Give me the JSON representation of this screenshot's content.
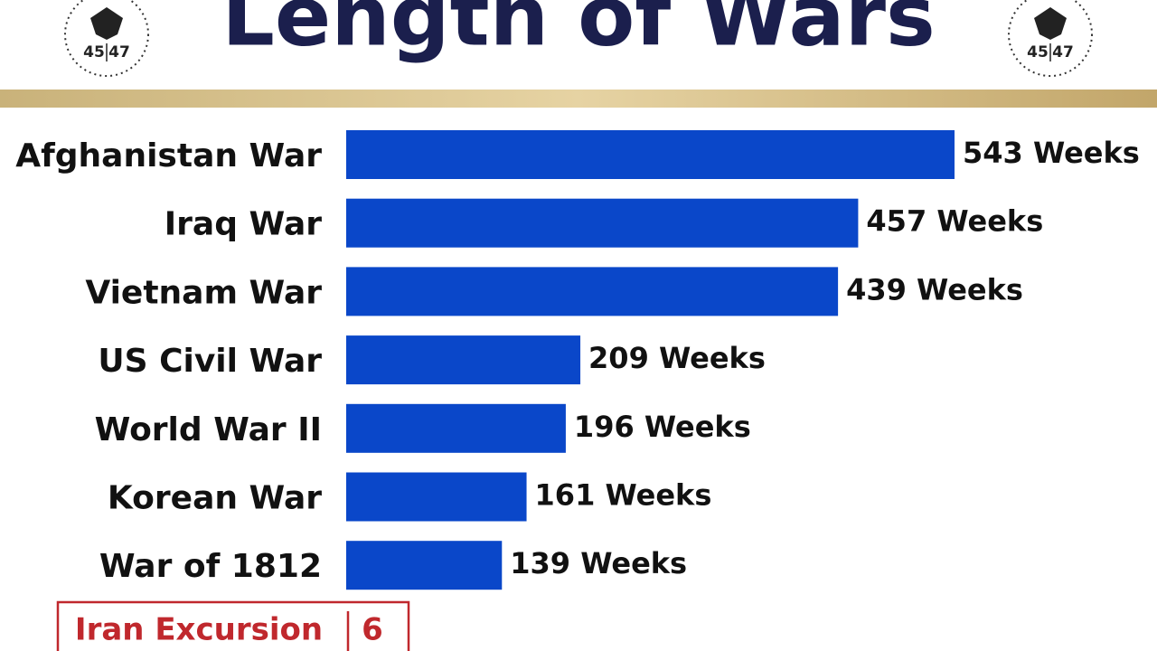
{
  "chart_data": {
    "type": "bar",
    "orientation": "horizontal",
    "title": "Length of Wars",
    "categories": [
      "Afghanistan War",
      "Iraq War",
      "Vietnam War",
      "US Civil War",
      "World War II",
      "Korean War",
      "War of 1812"
    ],
    "values": [
      543,
      457,
      439,
      209,
      196,
      161,
      139
    ],
    "value_labels": [
      "543 Weeks",
      "457 Weeks",
      "439 Weeks",
      "209 Weeks",
      "196 Weeks",
      "161 Weeks",
      "139 Weeks"
    ],
    "color": "#0a47c9",
    "highlight": {
      "label": "Iran Excursion",
      "value": 6,
      "color": "#c0282d"
    },
    "logo_numbers": [
      "45",
      "47"
    ]
  }
}
